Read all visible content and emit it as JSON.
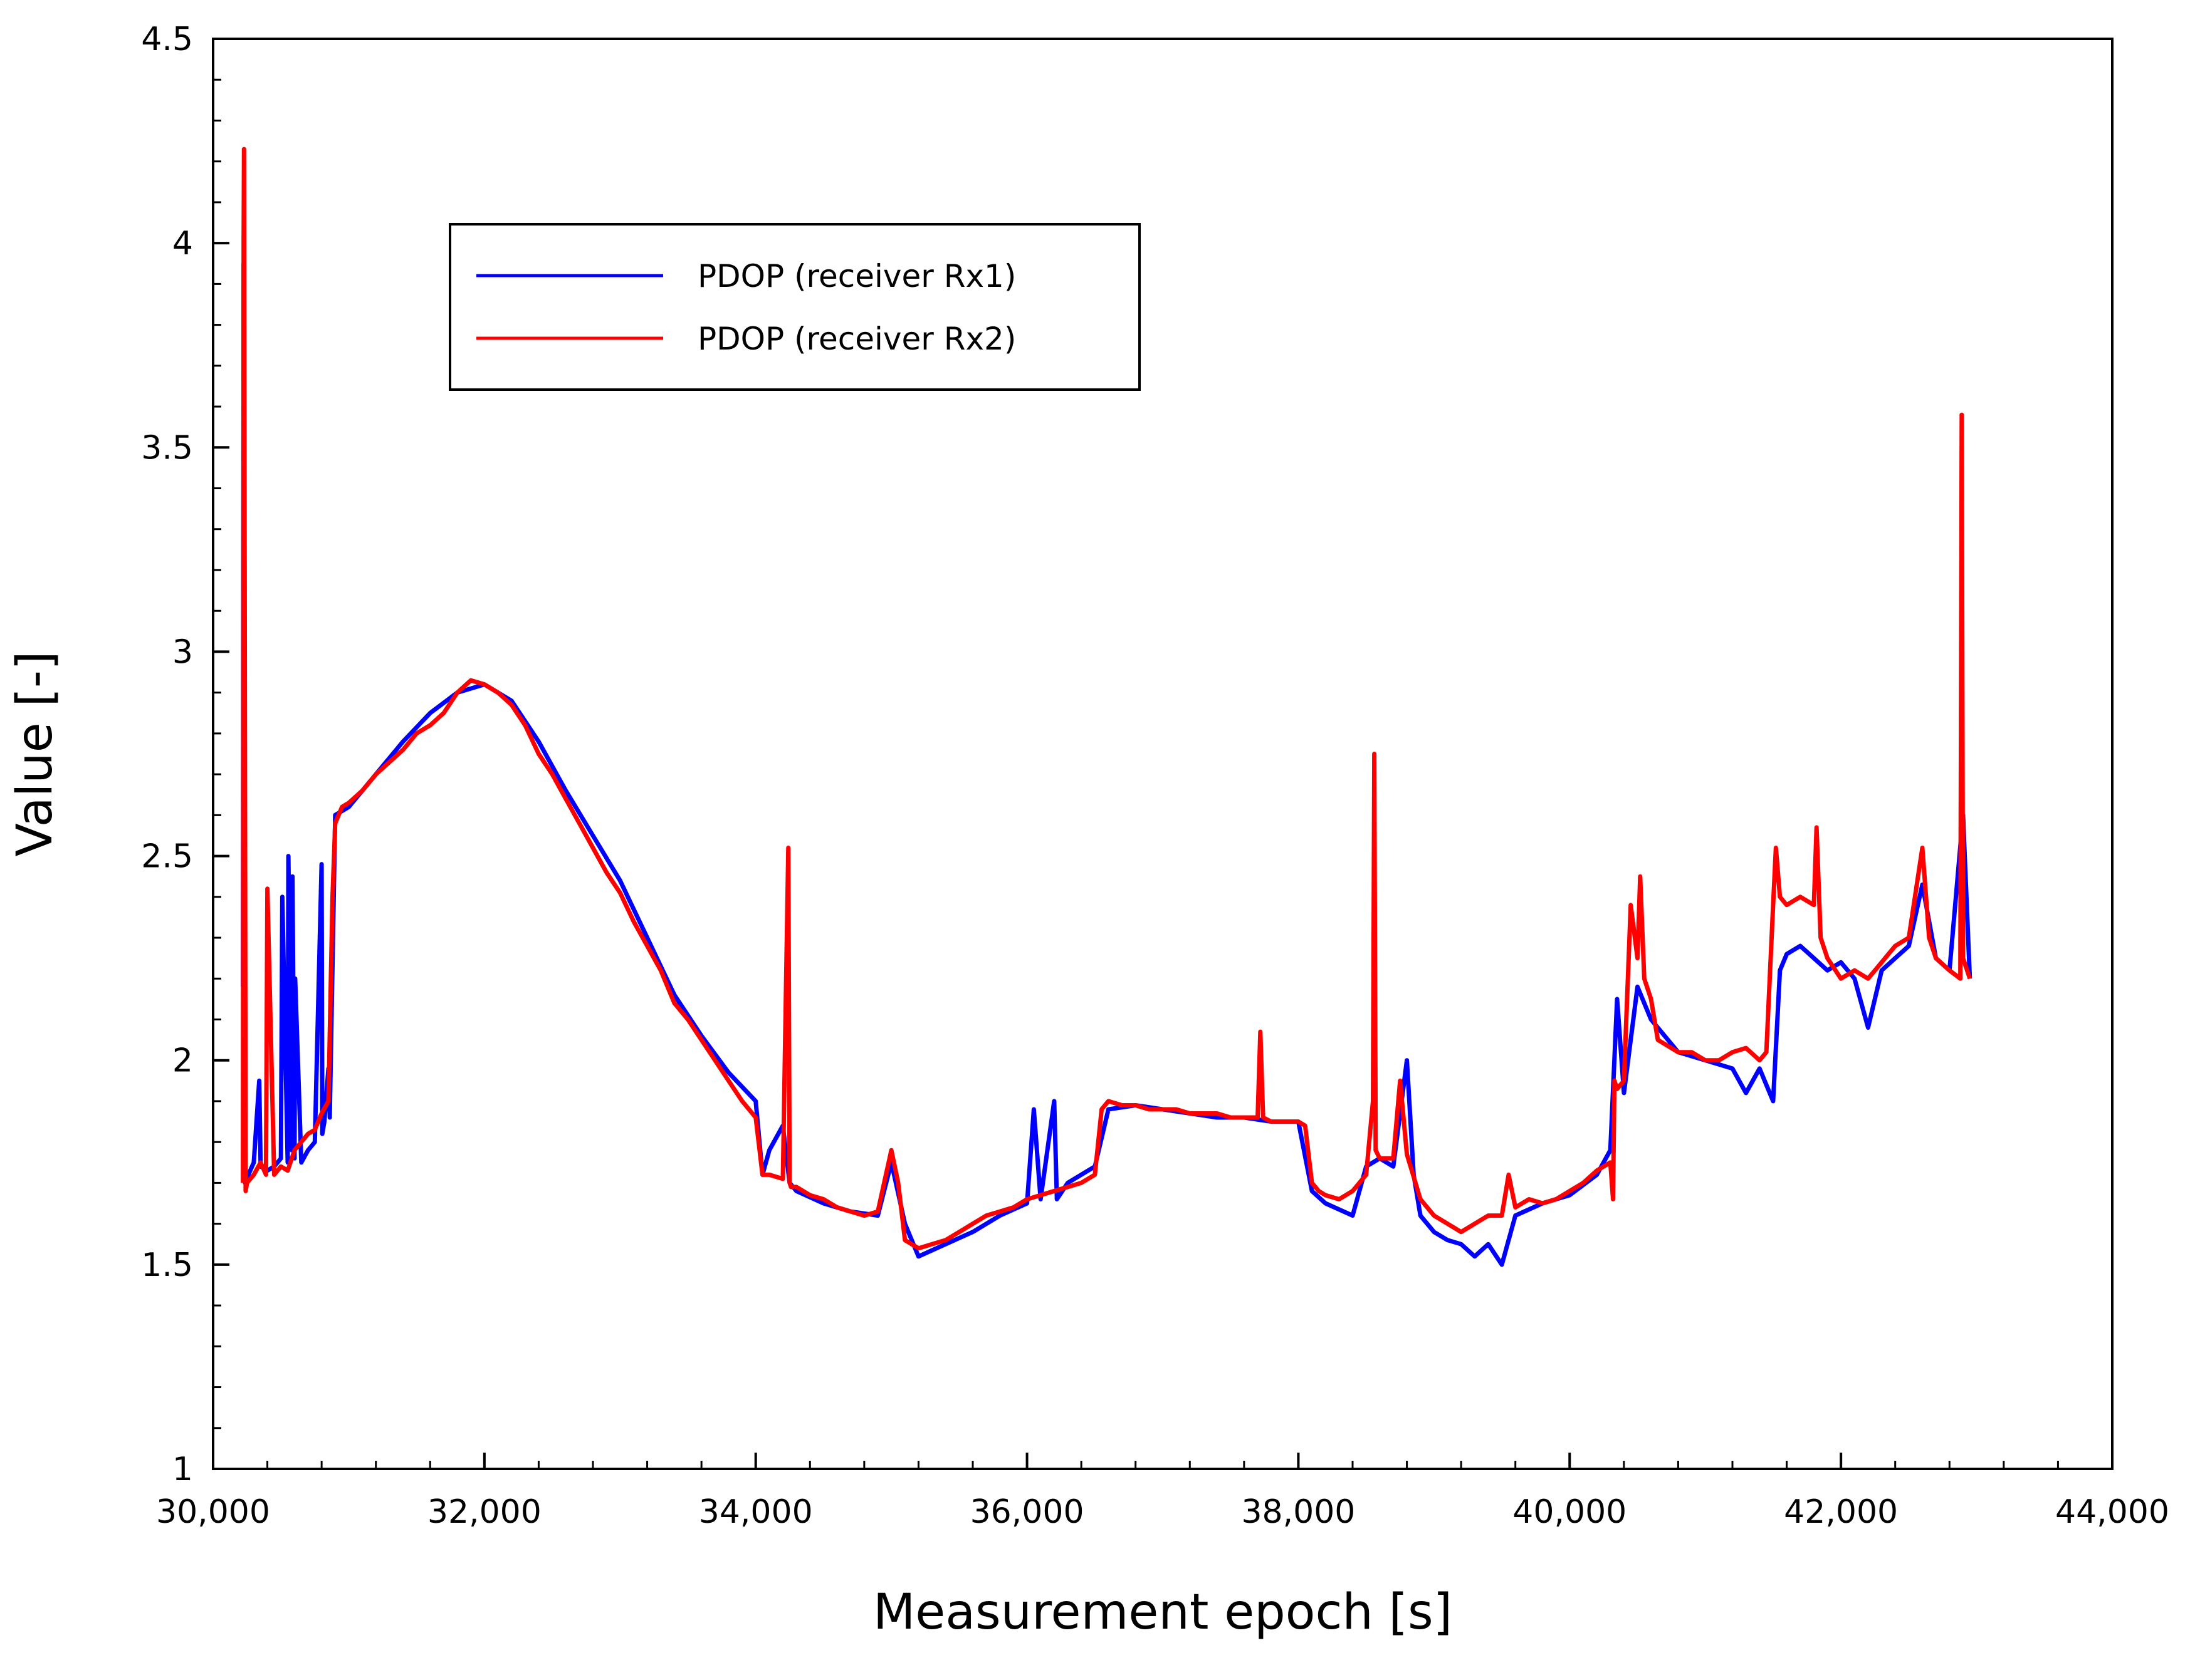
{
  "chart_data": {
    "type": "line",
    "xlabel": "Measurement epoch [s]",
    "ylabel": "Value [-]",
    "xlim": [
      30000,
      44000
    ],
    "ylim": [
      1,
      4.5
    ],
    "x_ticks": [
      {
        "value": 30000,
        "label": "30,000"
      },
      {
        "value": 32000,
        "label": "32,000"
      },
      {
        "value": 34000,
        "label": "34,000"
      },
      {
        "value": 36000,
        "label": "36,000"
      },
      {
        "value": 38000,
        "label": "38,000"
      },
      {
        "value": 40000,
        "label": "40,000"
      },
      {
        "value": 42000,
        "label": "42,000"
      },
      {
        "value": 44000,
        "label": "44,000"
      }
    ],
    "y_ticks": [
      {
        "value": 1,
        "label": "1"
      },
      {
        "value": 1.5,
        "label": "1.5"
      },
      {
        "value": 2,
        "label": "2"
      },
      {
        "value": 2.5,
        "label": "2.5"
      },
      {
        "value": 3,
        "label": "3"
      },
      {
        "value": 3.5,
        "label": "3.5"
      },
      {
        "value": 4,
        "label": "4"
      },
      {
        "value": 4.5,
        "label": "4.5"
      }
    ],
    "grid": false,
    "legend_position": "top-left",
    "series": [
      {
        "name": "PDOP (receiver Rx1)",
        "color": "#0000ff",
        "x": [
          30220,
          30225,
          30235,
          30260,
          30300,
          30340,
          30350,
          30400,
          30450,
          30500,
          30510,
          30550,
          30555,
          30580,
          30585,
          30600,
          30605,
          30650,
          30700,
          30750,
          30800,
          30805,
          30820,
          30850,
          30860,
          30900,
          31000,
          31200,
          31400,
          31600,
          31800,
          32000,
          32200,
          32400,
          32600,
          32800,
          33000,
          33200,
          33400,
          33600,
          33800,
          34000,
          34050,
          34100,
          34200,
          34250,
          34300,
          34500,
          34700,
          34900,
          35000,
          35100,
          35200,
          35400,
          35600,
          35800,
          36000,
          36050,
          36100,
          36200,
          36220,
          36300,
          36500,
          36600,
          36800,
          37000,
          37200,
          37400,
          37600,
          37800,
          38000,
          38100,
          38200,
          38400,
          38500,
          38600,
          38700,
          38800,
          38850,
          38900,
          39000,
          39100,
          39200,
          39300,
          39400,
          39500,
          39600,
          39800,
          40000,
          40200,
          40300,
          40350,
          40400,
          40500,
          40600,
          40800,
          41000,
          41200,
          41300,
          41400,
          41500,
          41550,
          41600,
          41700,
          41800,
          41900,
          42000,
          42100,
          42200,
          42300,
          42400,
          42500,
          42600,
          42700,
          42800,
          42900,
          42950
        ],
        "y": [
          2.18,
          3.95,
          1.7,
          1.72,
          1.75,
          1.95,
          1.74,
          1.73,
          1.74,
          1.76,
          2.4,
          1.75,
          2.5,
          1.78,
          2.45,
          1.76,
          2.2,
          1.75,
          1.78,
          1.8,
          2.48,
          1.82,
          1.85,
          1.98,
          1.86,
          2.6,
          2.62,
          2.7,
          2.78,
          2.85,
          2.9,
          2.92,
          2.88,
          2.78,
          2.66,
          2.55,
          2.44,
          2.3,
          2.16,
          2.06,
          1.97,
          1.9,
          1.72,
          1.78,
          1.84,
          1.7,
          1.68,
          1.65,
          1.63,
          1.62,
          1.75,
          1.6,
          1.52,
          1.55,
          1.58,
          1.62,
          1.65,
          1.88,
          1.66,
          1.9,
          1.66,
          1.7,
          1.74,
          1.88,
          1.89,
          1.88,
          1.87,
          1.86,
          1.86,
          1.85,
          1.85,
          1.68,
          1.65,
          1.62,
          1.74,
          1.76,
          1.74,
          2.0,
          1.72,
          1.62,
          1.58,
          1.56,
          1.55,
          1.52,
          1.55,
          1.5,
          1.62,
          1.65,
          1.67,
          1.72,
          1.78,
          2.15,
          1.92,
          2.18,
          2.1,
          2.02,
          2.0,
          1.98,
          1.92,
          1.98,
          1.9,
          2.22,
          2.26,
          2.28,
          2.25,
          2.22,
          2.24,
          2.2,
          2.08,
          2.22,
          2.25,
          2.28,
          2.43,
          2.25,
          2.22,
          2.6,
          2.2
        ]
      },
      {
        "name": "PDOP (receiver Rx2)",
        "color": "#ff0000",
        "x": [
          30220,
          30225,
          30228,
          30240,
          30250,
          30300,
          30350,
          30390,
          30400,
          30450,
          30500,
          30550,
          30600,
          30650,
          30700,
          30750,
          30800,
          30850,
          30880,
          30900,
          30950,
          31000,
          31100,
          31200,
          31300,
          31400,
          31500,
          31600,
          31700,
          31800,
          31900,
          32000,
          32100,
          32200,
          32300,
          32400,
          32500,
          32600,
          32700,
          32800,
          32900,
          33000,
          33100,
          33200,
          33300,
          33400,
          33500,
          33600,
          33700,
          33800,
          33900,
          34000,
          34050,
          34100,
          34200,
          34240,
          34250,
          34260,
          34300,
          34400,
          34500,
          34600,
          34700,
          34800,
          34900,
          35000,
          35050,
          35100,
          35200,
          35300,
          35400,
          35500,
          35600,
          35700,
          35800,
          35900,
          36000,
          36100,
          36200,
          36300,
          36400,
          36500,
          36550,
          36600,
          36700,
          36800,
          36900,
          37000,
          37100,
          37200,
          37300,
          37400,
          37500,
          37600,
          37700,
          37720,
          37740,
          37800,
          37900,
          38000,
          38050,
          38100,
          38150,
          38200,
          38300,
          38400,
          38500,
          38550,
          38560,
          38570,
          38600,
          38700,
          38750,
          38800,
          38900,
          39000,
          39100,
          39200,
          39300,
          39400,
          39500,
          39550,
          39600,
          39700,
          39800,
          39900,
          40000,
          40100,
          40200,
          40300,
          40320,
          40330,
          40350,
          40400,
          40450,
          40500,
          40520,
          40550,
          40600,
          40650,
          40700,
          40800,
          40900,
          41000,
          41100,
          41200,
          41300,
          41400,
          41450,
          41500,
          41520,
          41550,
          41600,
          41700,
          41800,
          41820,
          41850,
          41900,
          42000,
          42100,
          42200,
          42300,
          42400,
          42500,
          42600,
          42650,
          42700,
          42800,
          42880,
          42890,
          42900,
          42950
        ],
        "y": [
          1.7,
          4.0,
          4.23,
          1.68,
          1.7,
          1.72,
          1.75,
          1.72,
          2.42,
          1.72,
          1.74,
          1.73,
          1.78,
          1.8,
          1.82,
          1.83,
          1.87,
          1.9,
          2.4,
          2.58,
          2.62,
          2.63,
          2.66,
          2.7,
          2.73,
          2.76,
          2.8,
          2.82,
          2.85,
          2.9,
          2.93,
          2.92,
          2.9,
          2.87,
          2.82,
          2.75,
          2.7,
          2.64,
          2.58,
          2.52,
          2.46,
          2.41,
          2.34,
          2.28,
          2.22,
          2.14,
          2.1,
          2.05,
          2.0,
          1.95,
          1.9,
          1.86,
          1.72,
          1.72,
          1.71,
          2.52,
          1.7,
          1.69,
          1.69,
          1.67,
          1.66,
          1.64,
          1.63,
          1.62,
          1.63,
          1.78,
          1.7,
          1.56,
          1.54,
          1.55,
          1.56,
          1.58,
          1.6,
          1.62,
          1.63,
          1.64,
          1.66,
          1.67,
          1.68,
          1.69,
          1.7,
          1.72,
          1.88,
          1.9,
          1.89,
          1.89,
          1.88,
          1.88,
          1.88,
          1.87,
          1.87,
          1.87,
          1.86,
          1.86,
          1.86,
          2.07,
          1.86,
          1.85,
          1.85,
          1.85,
          1.84,
          1.7,
          1.68,
          1.67,
          1.66,
          1.68,
          1.72,
          1.9,
          2.75,
          1.78,
          1.76,
          1.76,
          1.95,
          1.77,
          1.66,
          1.62,
          1.6,
          1.58,
          1.6,
          1.62,
          1.62,
          1.72,
          1.64,
          1.66,
          1.65,
          1.66,
          1.68,
          1.7,
          1.73,
          1.75,
          1.66,
          1.95,
          1.93,
          1.95,
          2.38,
          2.25,
          2.45,
          2.2,
          2.15,
          2.05,
          2.04,
          2.02,
          2.02,
          2.0,
          2.0,
          2.02,
          2.03,
          2.0,
          2.02,
          2.38,
          2.52,
          2.4,
          2.38,
          2.4,
          2.38,
          2.57,
          2.3,
          2.25,
          2.2,
          2.22,
          2.2,
          2.24,
          2.28,
          2.3,
          2.52,
          2.3,
          2.25,
          2.22,
          2.2,
          3.58,
          2.25,
          2.2
        ]
      }
    ]
  }
}
